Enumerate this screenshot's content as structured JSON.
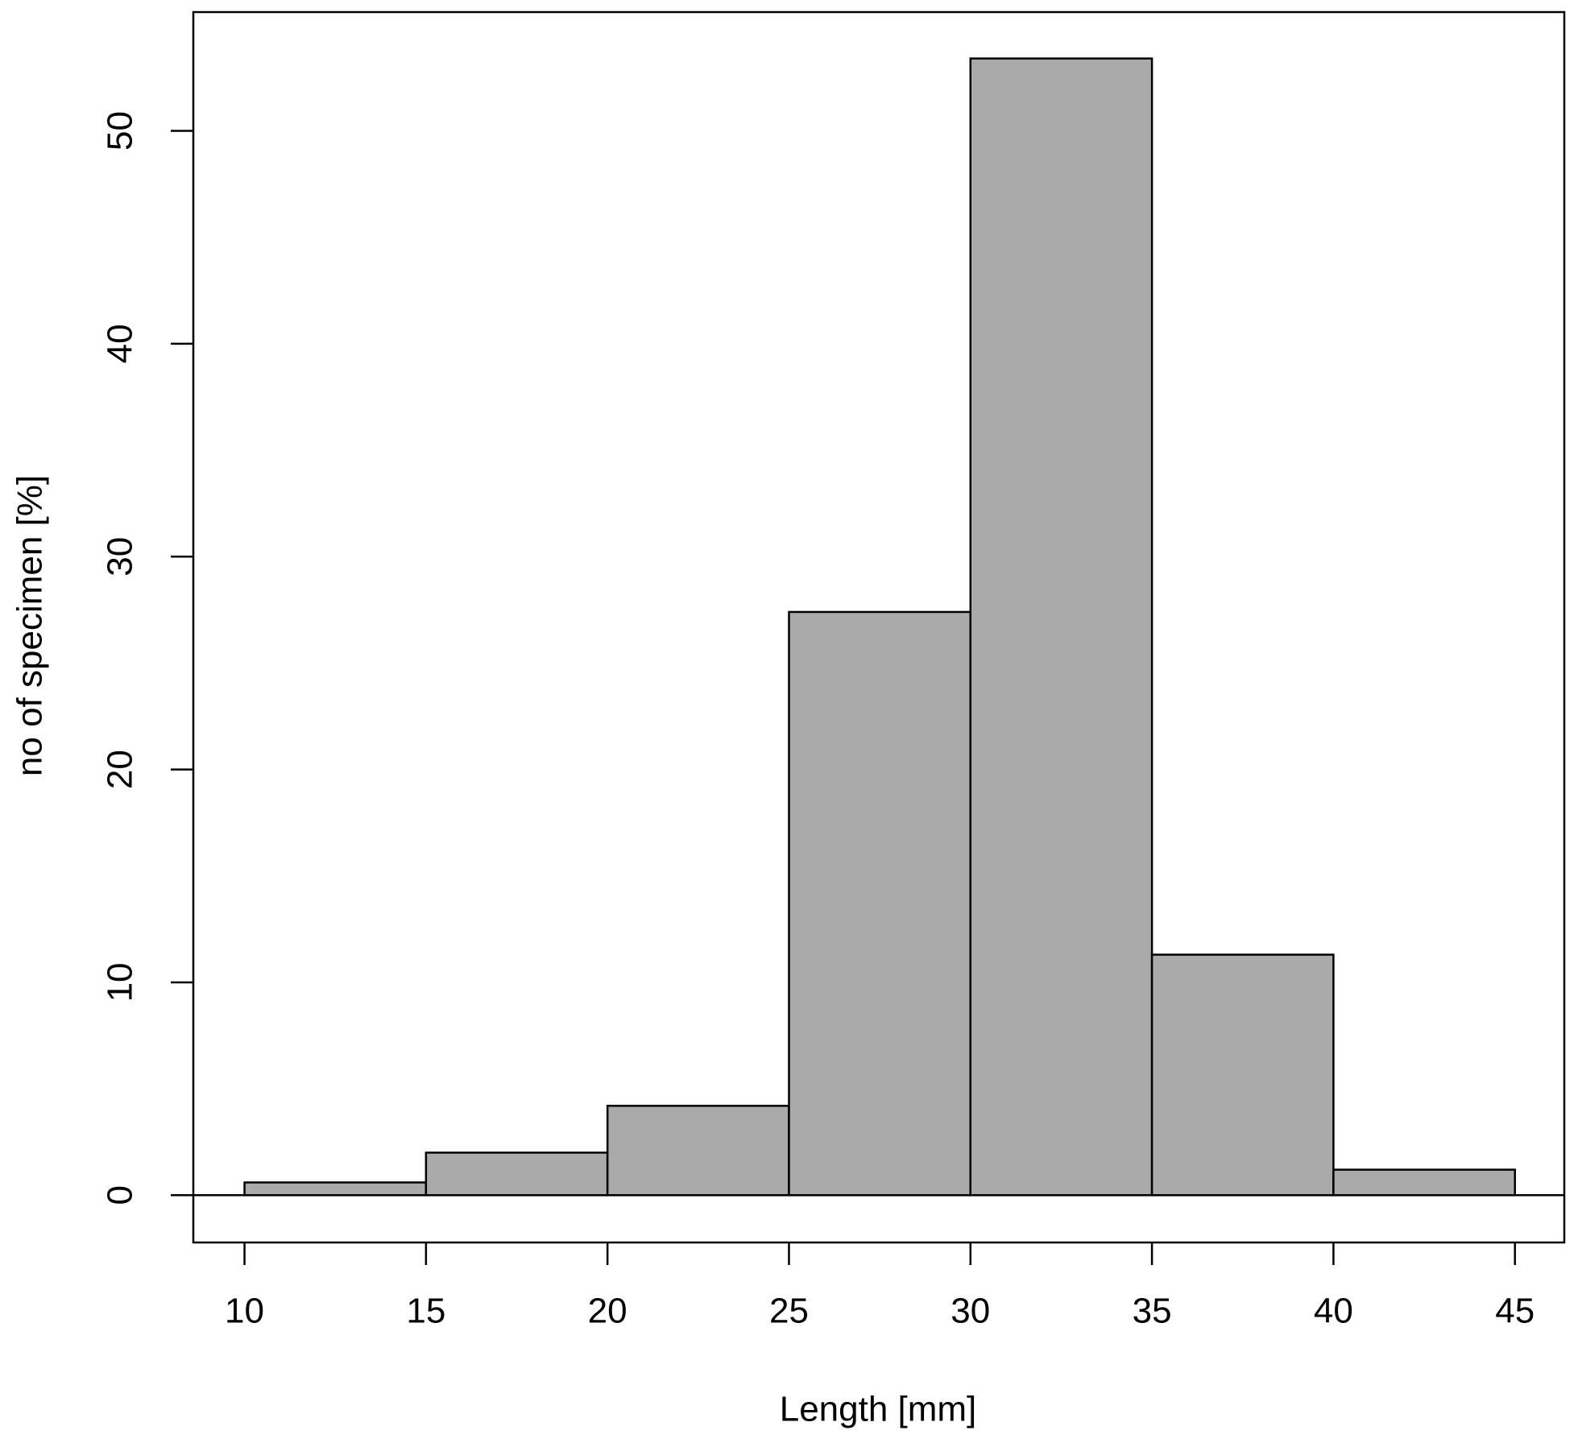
{
  "chart_data": {
    "type": "histogram",
    "x_label": "Length [mm]",
    "y_label": "no of specimen [%]",
    "bins": [
      10,
      15,
      20,
      25,
      30,
      35,
      40,
      45
    ],
    "values": [
      0.6,
      2.0,
      4.2,
      27.4,
      53.4,
      11.3,
      1.2
    ],
    "color": "#aaaaaa",
    "xlim": [
      8.59,
      46.36
    ],
    "ylim": [
      -2.22,
      55.58
    ],
    "xticks": [
      10,
      15,
      20,
      25,
      30,
      35,
      40,
      45
    ],
    "yticks": [
      0,
      10,
      20,
      30,
      40,
      50
    ],
    "grid": false
  }
}
